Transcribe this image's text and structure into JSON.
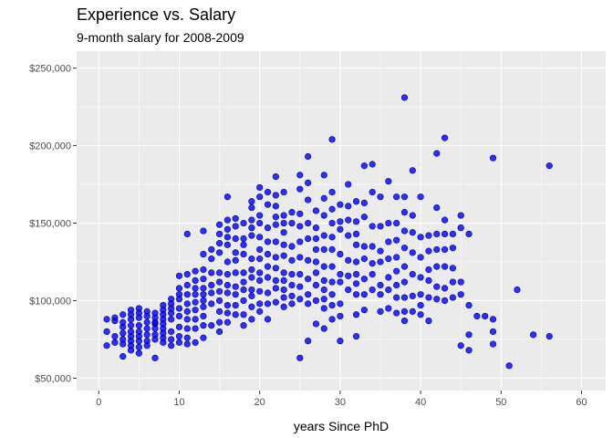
{
  "chart_data": {
    "type": "scatter",
    "title": "Experience vs. Salary",
    "subtitle": "9-month salary for 2008-2009",
    "xlabel": "years Since PhD",
    "ylabel": "",
    "xlim": [
      -2.75,
      63
    ],
    "ylim": [
      42000,
      261000
    ],
    "x_ticks": [
      0,
      10,
      20,
      30,
      40,
      50,
      60
    ],
    "y_ticks": [
      50000,
      100000,
      150000,
      200000,
      250000
    ],
    "y_tick_labels": [
      "$50,000",
      "$100,000",
      "$150,000",
      "$200,000",
      "$250,000"
    ],
    "grid": true,
    "colors": {
      "panel": "#ebebeb",
      "grid_major": "#ffffff",
      "point_fill": "#0000ff",
      "point_stroke": "#00008b"
    },
    "points": [
      [
        1,
        88000
      ],
      [
        1,
        80000
      ],
      [
        1,
        71000
      ],
      [
        2,
        89000
      ],
      [
        2,
        77000
      ],
      [
        2,
        73000
      ],
      [
        2,
        87000
      ],
      [
        3,
        91000
      ],
      [
        3,
        83000
      ],
      [
        3,
        79000
      ],
      [
        3,
        75000
      ],
      [
        3,
        72000
      ],
      [
        3,
        64000
      ],
      [
        3,
        86000
      ],
      [
        4,
        94000
      ],
      [
        4,
        91000
      ],
      [
        4,
        88000
      ],
      [
        4,
        84000
      ],
      [
        4,
        80000
      ],
      [
        4,
        77000
      ],
      [
        4,
        74000
      ],
      [
        4,
        71000
      ],
      [
        4,
        68000
      ],
      [
        5,
        95000
      ],
      [
        5,
        92000
      ],
      [
        5,
        89000
      ],
      [
        5,
        84000
      ],
      [
        5,
        80000
      ],
      [
        5,
        77000
      ],
      [
        5,
        74000
      ],
      [
        5,
        70000
      ],
      [
        5,
        66000
      ],
      [
        6,
        93000
      ],
      [
        6,
        90000
      ],
      [
        6,
        86000
      ],
      [
        6,
        82000
      ],
      [
        6,
        78000
      ],
      [
        6,
        74000
      ],
      [
        6,
        71000
      ],
      [
        7,
        92000
      ],
      [
        7,
        89000
      ],
      [
        7,
        85000
      ],
      [
        7,
        82000
      ],
      [
        7,
        78000
      ],
      [
        7,
        75000
      ],
      [
        7,
        63000
      ],
      [
        7,
        86000
      ],
      [
        8,
        97000
      ],
      [
        8,
        94000
      ],
      [
        8,
        91000
      ],
      [
        8,
        88000
      ],
      [
        8,
        85000
      ],
      [
        8,
        82000
      ],
      [
        8,
        79000
      ],
      [
        8,
        76000
      ],
      [
        8,
        73000
      ],
      [
        9,
        101000
      ],
      [
        9,
        98000
      ],
      [
        9,
        95000
      ],
      [
        9,
        92000
      ],
      [
        9,
        88000
      ],
      [
        9,
        80000
      ],
      [
        9,
        75000
      ],
      [
        9,
        71000
      ],
      [
        10,
        116000
      ],
      [
        10,
        108000
      ],
      [
        10,
        104000
      ],
      [
        10,
        101000
      ],
      [
        10,
        95000
      ],
      [
        10,
        90000
      ],
      [
        10,
        83000
      ],
      [
        10,
        77000
      ],
      [
        10,
        73000
      ],
      [
        11,
        143000
      ],
      [
        11,
        117000
      ],
      [
        11,
        110000
      ],
      [
        11,
        104000
      ],
      [
        11,
        98000
      ],
      [
        11,
        93000
      ],
      [
        11,
        88000
      ],
      [
        11,
        82000
      ],
      [
        11,
        76000
      ],
      [
        11,
        72000
      ],
      [
        12,
        119000
      ],
      [
        12,
        113000
      ],
      [
        12,
        108000
      ],
      [
        12,
        104000
      ],
      [
        12,
        99000
      ],
      [
        12,
        94000
      ],
      [
        12,
        88000
      ],
      [
        12,
        82000
      ],
      [
        12,
        73000
      ],
      [
        13,
        145000
      ],
      [
        13,
        130000
      ],
      [
        13,
        120000
      ],
      [
        13,
        114000
      ],
      [
        13,
        108000
      ],
      [
        13,
        104000
      ],
      [
        13,
        100000
      ],
      [
        13,
        96000
      ],
      [
        13,
        90000
      ],
      [
        13,
        84000
      ],
      [
        13,
        76000
      ],
      [
        14,
        133000
      ],
      [
        14,
        127000
      ],
      [
        14,
        118000
      ],
      [
        14,
        110000
      ],
      [
        14,
        105000
      ],
      [
        14,
        98000
      ],
      [
        14,
        84000
      ],
      [
        15,
        149000
      ],
      [
        15,
        143000
      ],
      [
        15,
        137000
      ],
      [
        15,
        131000
      ],
      [
        15,
        118000
      ],
      [
        15,
        112000
      ],
      [
        15,
        106000
      ],
      [
        15,
        100000
      ],
      [
        15,
        93000
      ],
      [
        15,
        86000
      ],
      [
        15,
        80000
      ],
      [
        16,
        167000
      ],
      [
        16,
        152000
      ],
      [
        16,
        146000
      ],
      [
        16,
        141000
      ],
      [
        16,
        136000
      ],
      [
        16,
        125000
      ],
      [
        16,
        117000
      ],
      [
        16,
        110000
      ],
      [
        16,
        105000
      ],
      [
        16,
        97000
      ],
      [
        16,
        92000
      ],
      [
        16,
        86000
      ],
      [
        17,
        153000
      ],
      [
        17,
        148000
      ],
      [
        17,
        140000
      ],
      [
        17,
        131000
      ],
      [
        17,
        126000
      ],
      [
        17,
        118000
      ],
      [
        17,
        109000
      ],
      [
        17,
        104000
      ],
      [
        17,
        97000
      ],
      [
        17,
        91000
      ],
      [
        18,
        150000
      ],
      [
        18,
        140000
      ],
      [
        18,
        136000
      ],
      [
        18,
        130000
      ],
      [
        18,
        118000
      ],
      [
        18,
        112000
      ],
      [
        18,
        107000
      ],
      [
        18,
        100000
      ],
      [
        18,
        91000
      ],
      [
        18,
        84000
      ],
      [
        19,
        164000
      ],
      [
        19,
        160000
      ],
      [
        19,
        152000
      ],
      [
        19,
        147000
      ],
      [
        19,
        142000
      ],
      [
        19,
        127000
      ],
      [
        19,
        120000
      ],
      [
        19,
        115000
      ],
      [
        19,
        107000
      ],
      [
        19,
        103000
      ],
      [
        19,
        96000
      ],
      [
        19,
        88000
      ],
      [
        20,
        173000
      ],
      [
        20,
        167000
      ],
      [
        20,
        155000
      ],
      [
        20,
        150000
      ],
      [
        20,
        141000
      ],
      [
        20,
        133000
      ],
      [
        20,
        127000
      ],
      [
        20,
        118000
      ],
      [
        20,
        113000
      ],
      [
        20,
        106000
      ],
      [
        20,
        98000
      ],
      [
        20,
        93000
      ],
      [
        21,
        170000
      ],
      [
        21,
        162000
      ],
      [
        21,
        147000
      ],
      [
        21,
        138000
      ],
      [
        21,
        130000
      ],
      [
        21,
        122000
      ],
      [
        21,
        115000
      ],
      [
        21,
        105000
      ],
      [
        21,
        98000
      ],
      [
        21,
        88000
      ],
      [
        22,
        180000
      ],
      [
        22,
        168000
      ],
      [
        22,
        161000
      ],
      [
        22,
        154000
      ],
      [
        22,
        149000
      ],
      [
        22,
        138000
      ],
      [
        22,
        128000
      ],
      [
        22,
        121000
      ],
      [
        22,
        113000
      ],
      [
        22,
        108000
      ],
      [
        22,
        99000
      ],
      [
        23,
        170000
      ],
      [
        23,
        155000
      ],
      [
        23,
        150000
      ],
      [
        23,
        144000
      ],
      [
        23,
        136000
      ],
      [
        23,
        129000
      ],
      [
        23,
        118000
      ],
      [
        23,
        113000
      ],
      [
        23,
        107000
      ],
      [
        23,
        102000
      ],
      [
        23,
        96000
      ],
      [
        24,
        157000
      ],
      [
        24,
        150000
      ],
      [
        24,
        135000
      ],
      [
        24,
        126000
      ],
      [
        24,
        117000
      ],
      [
        24,
        110000
      ],
      [
        24,
        103000
      ],
      [
        24,
        98000
      ],
      [
        25,
        181000
      ],
      [
        25,
        172000
      ],
      [
        25,
        156000
      ],
      [
        25,
        148000
      ],
      [
        25,
        138000
      ],
      [
        25,
        128000
      ],
      [
        25,
        117000
      ],
      [
        25,
        109000
      ],
      [
        25,
        101000
      ],
      [
        25,
        63000
      ],
      [
        26,
        193000
      ],
      [
        26,
        176000
      ],
      [
        26,
        165000
      ],
      [
        26,
        150000
      ],
      [
        26,
        140000
      ],
      [
        26,
        126000
      ],
      [
        26,
        114000
      ],
      [
        26,
        104000
      ],
      [
        26,
        98000
      ],
      [
        26,
        74000
      ],
      [
        27,
        158000
      ],
      [
        27,
        147000
      ],
      [
        27,
        140000
      ],
      [
        27,
        133000
      ],
      [
        27,
        125000
      ],
      [
        27,
        118000
      ],
      [
        27,
        110000
      ],
      [
        27,
        100000
      ],
      [
        27,
        85000
      ],
      [
        28,
        181000
      ],
      [
        28,
        166000
      ],
      [
        28,
        155000
      ],
      [
        28,
        142000
      ],
      [
        28,
        133000
      ],
      [
        28,
        122000
      ],
      [
        28,
        113000
      ],
      [
        28,
        107000
      ],
      [
        28,
        101000
      ],
      [
        28,
        95000
      ],
      [
        28,
        82000
      ],
      [
        29,
        204000
      ],
      [
        29,
        170000
      ],
      [
        29,
        159000
      ],
      [
        29,
        150000
      ],
      [
        29,
        141000
      ],
      [
        29,
        133000
      ],
      [
        29,
        122000
      ],
      [
        29,
        112000
      ],
      [
        29,
        104000
      ],
      [
        29,
        97000
      ],
      [
        29,
        88000
      ],
      [
        30,
        162000
      ],
      [
        30,
        151000
      ],
      [
        30,
        146000
      ],
      [
        30,
        130000
      ],
      [
        30,
        117000
      ],
      [
        30,
        112000
      ],
      [
        30,
        98000
      ],
      [
        30,
        90000
      ],
      [
        30,
        74000
      ],
      [
        31,
        175000
      ],
      [
        31,
        161000
      ],
      [
        31,
        152000
      ],
      [
        31,
        142000
      ],
      [
        31,
        126000
      ],
      [
        31,
        116000
      ],
      [
        31,
        107000
      ],
      [
        32,
        164000
      ],
      [
        32,
        151000
      ],
      [
        32,
        143000
      ],
      [
        32,
        136000
      ],
      [
        32,
        125000
      ],
      [
        32,
        117000
      ],
      [
        32,
        111000
      ],
      [
        32,
        104000
      ],
      [
        32,
        91000
      ],
      [
        32,
        77000
      ],
      [
        33,
        187000
      ],
      [
        33,
        163000
      ],
      [
        33,
        154000
      ],
      [
        33,
        135000
      ],
      [
        33,
        127000
      ],
      [
        33,
        114000
      ],
      [
        33,
        104000
      ],
      [
        33,
        94000
      ],
      [
        34,
        188000
      ],
      [
        34,
        170000
      ],
      [
        34,
        148000
      ],
      [
        34,
        135000
      ],
      [
        34,
        124000
      ],
      [
        34,
        117000
      ],
      [
        34,
        107000
      ],
      [
        35,
        167000
      ],
      [
        35,
        148000
      ],
      [
        35,
        132000
      ],
      [
        35,
        125000
      ],
      [
        35,
        110000
      ],
      [
        35,
        104000
      ],
      [
        35,
        93000
      ],
      [
        36,
        177000
      ],
      [
        36,
        150000
      ],
      [
        36,
        138000
      ],
      [
        36,
        127000
      ],
      [
        36,
        115000
      ],
      [
        36,
        107000
      ],
      [
        36,
        95000
      ],
      [
        37,
        167000
      ],
      [
        37,
        150000
      ],
      [
        37,
        139000
      ],
      [
        37,
        128000
      ],
      [
        37,
        119000
      ],
      [
        37,
        110000
      ],
      [
        37,
        102000
      ],
      [
        37,
        92000
      ],
      [
        38,
        231000
      ],
      [
        38,
        167000
      ],
      [
        38,
        157000
      ],
      [
        38,
        145000
      ],
      [
        38,
        134000
      ],
      [
        38,
        122000
      ],
      [
        38,
        112000
      ],
      [
        38,
        102000
      ],
      [
        38,
        93000
      ],
      [
        38,
        87000
      ],
      [
        39,
        184000
      ],
      [
        39,
        155000
      ],
      [
        39,
        144000
      ],
      [
        39,
        131000
      ],
      [
        39,
        117000
      ],
      [
        39,
        103000
      ],
      [
        39,
        93000
      ],
      [
        40,
        167000
      ],
      [
        40,
        141000
      ],
      [
        40,
        128000
      ],
      [
        40,
        115000
      ],
      [
        40,
        104000
      ],
      [
        40,
        97000
      ],
      [
        40,
        91000
      ],
      [
        41,
        142000
      ],
      [
        41,
        132000
      ],
      [
        41,
        120000
      ],
      [
        41,
        113000
      ],
      [
        41,
        102000
      ],
      [
        41,
        87000
      ],
      [
        42,
        195000
      ],
      [
        42,
        160000
      ],
      [
        42,
        143000
      ],
      [
        42,
        133000
      ],
      [
        42,
        122000
      ],
      [
        42,
        109000
      ],
      [
        42,
        101000
      ],
      [
        43,
        205000
      ],
      [
        43,
        152000
      ],
      [
        43,
        143000
      ],
      [
        43,
        133000
      ],
      [
        43,
        122000
      ],
      [
        43,
        108000
      ],
      [
        43,
        100000
      ],
      [
        44,
        143000
      ],
      [
        44,
        134000
      ],
      [
        44,
        121000
      ],
      [
        44,
        112000
      ],
      [
        44,
        102000
      ],
      [
        45,
        155000
      ],
      [
        45,
        147000
      ],
      [
        45,
        112000
      ],
      [
        45,
        104000
      ],
      [
        45,
        71000
      ],
      [
        46,
        143000
      ],
      [
        46,
        97000
      ],
      [
        46,
        78000
      ],
      [
        46,
        68000
      ],
      [
        47,
        90000
      ],
      [
        48,
        90000
      ],
      [
        49,
        192000
      ],
      [
        49,
        88000
      ],
      [
        49,
        80000
      ],
      [
        49,
        72000
      ],
      [
        51,
        58000
      ],
      [
        52,
        107000
      ],
      [
        54,
        78000
      ],
      [
        56,
        187000
      ],
      [
        56,
        77000
      ]
    ]
  }
}
